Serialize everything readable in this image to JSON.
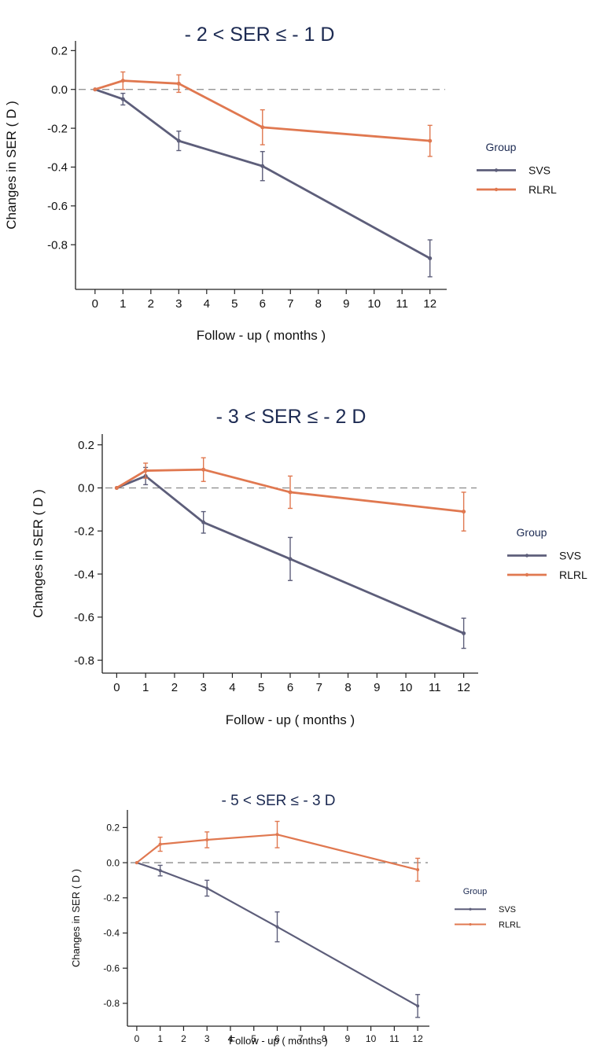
{
  "colors": {
    "SVS": "#5d5e7a",
    "RLRL": "#e07850",
    "reference_line": "#8a8a8a",
    "axis": "#222222",
    "title": "#1c2a52"
  },
  "chart_data": [
    {
      "type": "line",
      "title": "- 2 < SER ≤ - 1 D",
      "xlabel": "Follow - up ( months )",
      "ylabel": "Changes in SER ( D )",
      "xticks": [
        0,
        1,
        2,
        3,
        4,
        5,
        6,
        7,
        8,
        9,
        10,
        11,
        12
      ],
      "yticks": [
        0.2,
        0.0,
        -0.2,
        -0.4,
        -0.6,
        -0.8
      ],
      "ytick_labels": [
        "0.2",
        "0.0",
        "-0.2",
        "-0.4",
        "-0.6",
        "-0.8"
      ],
      "xlim": [
        -0.7,
        12.6
      ],
      "ylim": [
        -1.03,
        0.25
      ],
      "reference_line_y": 0,
      "grid": false,
      "legend": {
        "title": "Group",
        "placement": "right"
      },
      "series": [
        {
          "name": "SVS",
          "x": [
            0,
            1,
            3,
            6,
            12
          ],
          "y": [
            0.0,
            -0.05,
            -0.265,
            -0.395,
            -0.87
          ],
          "err": [
            0.0,
            0.03,
            0.05,
            0.075,
            0.095
          ]
        },
        {
          "name": "RLRL",
          "x": [
            0,
            1,
            3,
            6,
            12
          ],
          "y": [
            0.0,
            0.045,
            0.03,
            -0.195,
            -0.265
          ],
          "err": [
            0.0,
            0.045,
            0.045,
            0.09,
            0.08
          ]
        }
      ]
    },
    {
      "type": "line",
      "title": "- 3 < SER ≤ - 2 D",
      "xlabel": "Follow - up ( months )",
      "ylabel": "Changes in SER ( D )",
      "xticks": [
        0,
        1,
        2,
        3,
        4,
        5,
        6,
        7,
        8,
        9,
        10,
        11,
        12
      ],
      "yticks": [
        0.2,
        0.0,
        -0.2,
        -0.4,
        -0.6,
        -0.8
      ],
      "ytick_labels": [
        "0.2",
        "0.0",
        "-0.2",
        "-0.4",
        "-0.6",
        "-0.8"
      ],
      "xlim": [
        -0.5,
        12.5
      ],
      "ylim": [
        -0.86,
        0.25
      ],
      "reference_line_y": 0,
      "grid": false,
      "legend": {
        "title": "Group",
        "placement": "right"
      },
      "series": [
        {
          "name": "SVS",
          "x": [
            0,
            1,
            3,
            6,
            12
          ],
          "y": [
            0.0,
            0.055,
            -0.16,
            -0.33,
            -0.675
          ],
          "err": [
            0.0,
            0.04,
            0.05,
            0.1,
            0.07
          ]
        },
        {
          "name": "RLRL",
          "x": [
            0,
            1,
            3,
            6,
            12
          ],
          "y": [
            0.0,
            0.08,
            0.085,
            -0.02,
            -0.11
          ],
          "err": [
            0.0,
            0.035,
            0.055,
            0.075,
            0.09
          ]
        }
      ]
    },
    {
      "type": "line",
      "title": "- 5 < SER ≤ - 3 D",
      "xlabel": "Follow - up ( months )",
      "ylabel": "Changes in SER ( D )",
      "xticks": [
        0,
        1,
        2,
        3,
        4,
        5,
        6,
        7,
        8,
        9,
        10,
        11,
        12
      ],
      "yticks": [
        0.2,
        0.0,
        -0.2,
        -0.4,
        -0.6,
        -0.8
      ],
      "ytick_labels": [
        "0.2",
        "0.0",
        "-0.2",
        "-0.4",
        "-0.6",
        "-0.8"
      ],
      "xlim": [
        -0.4,
        12.5
      ],
      "ylim": [
        -0.93,
        0.3
      ],
      "reference_line_y": 0,
      "grid": false,
      "legend": {
        "title": "Group",
        "placement": "right"
      },
      "series": [
        {
          "name": "SVS",
          "x": [
            0,
            1,
            3,
            6,
            12
          ],
          "y": [
            0.0,
            -0.045,
            -0.145,
            -0.365,
            -0.815
          ],
          "err": [
            0.0,
            0.03,
            0.045,
            0.085,
            0.065
          ]
        },
        {
          "name": "RLRL",
          "x": [
            0,
            1,
            3,
            6,
            12
          ],
          "y": [
            0.0,
            0.105,
            0.13,
            0.16,
            -0.04
          ],
          "err": [
            0.0,
            0.04,
            0.045,
            0.075,
            0.065
          ]
        }
      ]
    }
  ]
}
